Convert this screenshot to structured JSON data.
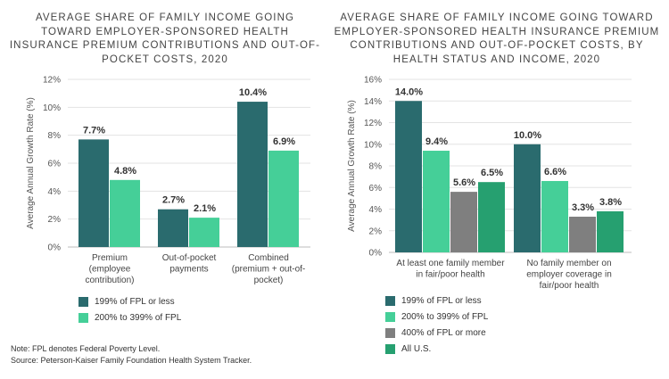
{
  "colors": {
    "fpl_low": "#2a6b6e",
    "fpl_mid": "#45cf98",
    "fpl_high": "#7f7f7f",
    "all_us": "#26a070",
    "grid": "#e3e3e3",
    "axis": "#bdbdbd"
  },
  "notes": {
    "line1": "Note: FPL denotes Federal Poverty Level.",
    "line2": "Source: Peterson-Kaiser Family Foundation Health System Tracker."
  },
  "chart_data": [
    {
      "type": "bar",
      "title": "AVERAGE SHARE OF FAMILY INCOME GOING TOWARD EMPLOYER-SPONSORED HEALTH INSURANCE PREMIUM CONTRIBUTIONS AND OUT-OF-POCKET COSTS, 2020",
      "ylabel": "Average Annual Growth Rate (%)",
      "xlabel": "",
      "ylim": [
        0,
        12
      ],
      "yticks": [
        0,
        2,
        4,
        6,
        8,
        10,
        12
      ],
      "tick_labels": [
        "0%",
        "2%",
        "4%",
        "6%",
        "8%",
        "10%",
        "12%"
      ],
      "categories": [
        [
          "Premium",
          "(employee",
          "contribution)"
        ],
        [
          "Out-of-pocket",
          "payments"
        ],
        [
          "Combined",
          "(premium + out-of-",
          "pocket)"
        ]
      ],
      "series": [
        {
          "name": "199% of FPL or less",
          "color_key": "fpl_low",
          "values": [
            7.7,
            2.7,
            10.4
          ],
          "labels": [
            "7.7%",
            "2.7%",
            "10.4%"
          ]
        },
        {
          "name": "200% to 399% of FPL",
          "color_key": "fpl_mid",
          "values": [
            4.8,
            2.1,
            6.9
          ],
          "labels": [
            "4.8%",
            "2.1%",
            "6.9%"
          ]
        }
      ],
      "legend": "bottom"
    },
    {
      "type": "bar",
      "title": "AVERAGE SHARE OF FAMILY INCOME GOING TOWARD EMPLOYER-SPONSORED HEALTH INSURANCE PREMIUM CONTRIBUTIONS AND OUT-OF-POCKET COSTS, BY HEALTH STATUS AND INCOME, 2020",
      "ylabel": "Average Annual Growth Rate (%)",
      "xlabel": "",
      "ylim": [
        0,
        16
      ],
      "yticks": [
        0,
        2,
        4,
        6,
        8,
        10,
        12,
        14,
        16
      ],
      "tick_labels": [
        "0%",
        "2%",
        "4%",
        "6%",
        "8%",
        "10%",
        "12%",
        "14%",
        "16%"
      ],
      "categories": [
        [
          "At least one family member",
          "in fair/poor health"
        ],
        [
          "No family member on",
          "employer coverage in",
          "fair/poor health"
        ]
      ],
      "series": [
        {
          "name": "199% of FPL or less",
          "color_key": "fpl_low",
          "values": [
            14.0,
            10.0
          ],
          "labels": [
            "14.0%",
            "10.0%"
          ]
        },
        {
          "name": "200% to 399% of FPL",
          "color_key": "fpl_mid",
          "values": [
            9.4,
            6.6
          ],
          "labels": [
            "9.4%",
            "6.6%"
          ]
        },
        {
          "name": "400% of FPL or more",
          "color_key": "fpl_high",
          "values": [
            5.6,
            3.3
          ],
          "labels": [
            "5.6%",
            "3.3%"
          ]
        },
        {
          "name": "All U.S.",
          "color_key": "all_us",
          "values": [
            6.5,
            3.8
          ],
          "labels": [
            "6.5%",
            "3.8%"
          ]
        }
      ],
      "legend": "bottom"
    }
  ]
}
